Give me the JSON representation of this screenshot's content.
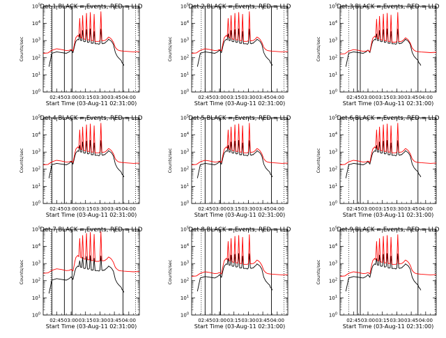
{
  "colors": {
    "events": "#000000",
    "lld": "#ff0000",
    "background": "#ffffff"
  },
  "chart_data": {
    "type": "line",
    "layout_grid": "3x3",
    "y_scale": "log",
    "ylim": [
      1,
      100000
    ],
    "yticks": [
      1,
      10,
      100,
      1000,
      10000,
      100000
    ],
    "xlim": [
      "02:31",
      "04:11"
    ],
    "xtick_labels": [
      "02:45",
      "03:00",
      "03:15",
      "03:30",
      "03:45",
      "04:00"
    ],
    "xlabel": "Start Time (03-Aug-11 02:31:00)",
    "ylabel": "Counts/sec",
    "grid": false,
    "legend": "none",
    "panels": [
      {
        "title": "Det 1 BLACK = Events, RED = LLD",
        "events_scale": 1.0,
        "lld_scale": 1.0,
        "vlines_solid": [
          "02:40",
          "02:53",
          "03:01",
          "03:54"
        ],
        "vlines_dotted": [
          "02:39",
          "04:07"
        ]
      },
      {
        "title": "Det 2 BLACK = Events, RED = LLD",
        "events_scale": 1.0,
        "lld_scale": 1.0,
        "vlines_solid": [
          "02:45",
          "02:52",
          "03:01",
          "03:54"
        ],
        "vlines_dotted": [
          "02:41",
          "04:07"
        ]
      },
      {
        "title": "Det 3 BLACK = Events, RED = LLD",
        "events_scale": 1.0,
        "lld_scale": 0.9,
        "vlines_solid": [
          "02:49",
          "02:52",
          "03:52"
        ],
        "vlines_dotted": [
          "02:40",
          "04:10"
        ]
      },
      {
        "title": "Det 4 BLACK = Events, RED = LLD",
        "events_scale": 1.0,
        "lld_scale": 1.0,
        "vlines_solid": [
          "02:40",
          "02:53",
          "03:01",
          "03:54"
        ],
        "vlines_dotted": [
          "02:39",
          "04:07"
        ]
      },
      {
        "title": "Det 5 BLACK = Events, RED = LLD",
        "events_scale": 1.0,
        "lld_scale": 1.0,
        "vlines_solid": [
          "02:45",
          "02:52",
          "03:01",
          "03:54"
        ],
        "vlines_dotted": [
          "02:41",
          "04:07"
        ]
      },
      {
        "title": "Det 6 BLACK = Events, RED = LLD",
        "events_scale": 1.0,
        "lld_scale": 1.0,
        "vlines_solid": [
          "02:49",
          "02:52",
          "03:52"
        ],
        "vlines_dotted": [
          "02:40",
          "04:10"
        ]
      },
      {
        "title": "Det 7 BLACK = Events, RED = LLD",
        "events_scale": 0.6,
        "lld_scale": 1.5,
        "vlines_solid": [
          "02:40",
          "02:53",
          "03:01",
          "03:54"
        ],
        "vlines_dotted": [
          "02:39",
          "04:07"
        ]
      },
      {
        "title": "Det 8 BLACK = Events, RED = LLD",
        "events_scale": 0.8,
        "lld_scale": 1.0,
        "vlines_solid": [
          "02:45",
          "02:52",
          "03:01",
          "03:54"
        ],
        "vlines_dotted": [
          "02:41",
          "04:07"
        ]
      },
      {
        "title": "Det 9 BLACK = Events, RED = LLD",
        "events_scale": 0.8,
        "lld_scale": 1.0,
        "vlines_solid": [
          "02:49",
          "02:52",
          "03:52"
        ],
        "vlines_dotted": [
          "02:40",
          "04:10"
        ]
      }
    ],
    "series": [
      {
        "key": "events",
        "color": "#000000",
        "x": [
          "02:31",
          "02:36",
          "02:37",
          "02:40",
          "02:45",
          "02:50",
          "02:55",
          "02:58",
          "03:00",
          "03:02",
          "03:04",
          "03:05",
          "03:07",
          "03:08",
          "03:09",
          "03:10",
          "03:11",
          "03:12",
          "03:13",
          "03:14",
          "03:15",
          "03:16",
          "03:17",
          "03:18",
          "03:19",
          "03:20",
          "03:21",
          "03:22",
          "03:23",
          "03:24",
          "03:25",
          "03:26",
          "03:27",
          "03:28",
          "03:29",
          "03:30",
          "03:31",
          "03:32",
          "03:33",
          "03:34",
          "03:35",
          "03:36",
          "03:37",
          "03:38",
          "03:39",
          "03:40",
          "03:42",
          "03:44",
          "03:46",
          "03:48",
          "03:50",
          "03:52",
          "03:53",
          "03:54",
          "03:55",
          "04:11"
        ],
        "y": [
          null,
          null,
          30,
          180,
          220,
          200,
          180,
          220,
          280,
          200,
          600,
          900,
          1200,
          1100,
          2500,
          1000,
          1000,
          4000,
          900,
          850,
          900,
          4500,
          800,
          780,
          850,
          5000,
          700,
          700,
          700,
          3500,
          650,
          650,
          650,
          650,
          600,
          700,
          4800,
          700,
          650,
          700,
          700,
          800,
          900,
          1000,
          1200,
          1100,
          900,
          600,
          200,
          120,
          90,
          70,
          50,
          45,
          35,
          null
        ]
      },
      {
        "key": "lld",
        "color": "#ff0000",
        "x": [
          "02:31",
          "02:36",
          "02:40",
          "02:45",
          "02:50",
          "02:55",
          "02:58",
          "03:00",
          "03:02",
          "03:04",
          "03:05",
          "03:07",
          "03:08",
          "03:09",
          "03:10",
          "03:11",
          "03:12",
          "03:13",
          "03:14",
          "03:15",
          "03:16",
          "03:17",
          "03:18",
          "03:19",
          "03:20",
          "03:21",
          "03:22",
          "03:23",
          "03:24",
          "03:25",
          "03:26",
          "03:27",
          "03:28",
          "03:29",
          "03:30",
          "03:31",
          "03:32",
          "03:33",
          "03:34",
          "03:35",
          "03:36",
          "03:37",
          "03:38",
          "03:39",
          "03:40",
          "03:42",
          "03:44",
          "03:46",
          "03:48",
          "03:50",
          "03:52",
          "03:55",
          "04:00",
          "04:05",
          "04:11"
        ],
        "y": [
          180,
          190,
          270,
          330,
          300,
          260,
          270,
          300,
          250,
          900,
          1500,
          2000,
          1700,
          20000,
          1500,
          1400,
          30000,
          1300,
          1200,
          1200,
          40000,
          1100,
          1100,
          1100,
          45000,
          1000,
          1000,
          1000,
          35000,
          900,
          900,
          900,
          900,
          900,
          1000,
          50000,
          1000,
          950,
          1000,
          1000,
          1100,
          1200,
          1400,
          1600,
          1500,
          1200,
          800,
          400,
          300,
          260,
          250,
          240,
          230,
          220,
          230
        ]
      }
    ]
  }
}
